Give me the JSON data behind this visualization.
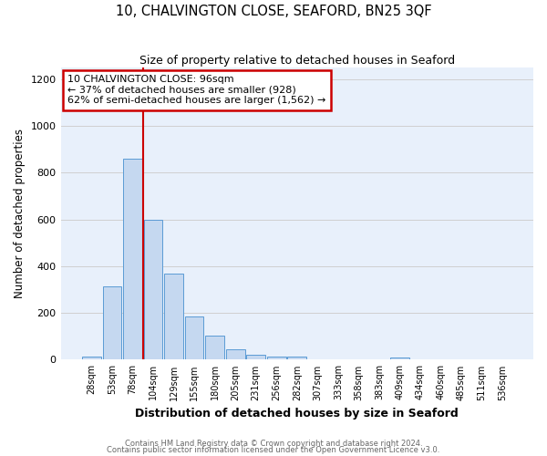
{
  "title": "10, CHALVINGTON CLOSE, SEAFORD, BN25 3QF",
  "subtitle": "Size of property relative to detached houses in Seaford",
  "xlabel": "Distribution of detached houses by size in Seaford",
  "ylabel": "Number of detached properties",
  "bar_labels": [
    "28sqm",
    "53sqm",
    "78sqm",
    "104sqm",
    "129sqm",
    "155sqm",
    "180sqm",
    "205sqm",
    "231sqm",
    "256sqm",
    "282sqm",
    "307sqm",
    "333sqm",
    "358sqm",
    "383sqm",
    "409sqm",
    "434sqm",
    "460sqm",
    "485sqm",
    "511sqm",
    "536sqm"
  ],
  "bar_values": [
    15,
    315,
    860,
    600,
    370,
    185,
    105,
    45,
    20,
    15,
    15,
    0,
    0,
    0,
    0,
    10,
    0,
    0,
    0,
    0,
    0
  ],
  "bar_color": "#c5d8f0",
  "bar_edge_color": "#5b9bd5",
  "grid_color": "#d0d0d0",
  "vline_color": "#cc0000",
  "annotation_text": "10 CHALVINGTON CLOSE: 96sqm\n← 37% of detached houses are smaller (928)\n62% of semi-detached houses are larger (1,562) →",
  "annotation_box_color": "#ffffff",
  "annotation_box_edge": "#cc0000",
  "ylim": [
    0,
    1250
  ],
  "yticks": [
    0,
    200,
    400,
    600,
    800,
    1000,
    1200
  ],
  "footnote1": "Contains HM Land Registry data © Crown copyright and database right 2024.",
  "footnote2": "Contains public sector information licensed under the Open Government Licence v3.0.",
  "bg_color": "#e8f0fb"
}
